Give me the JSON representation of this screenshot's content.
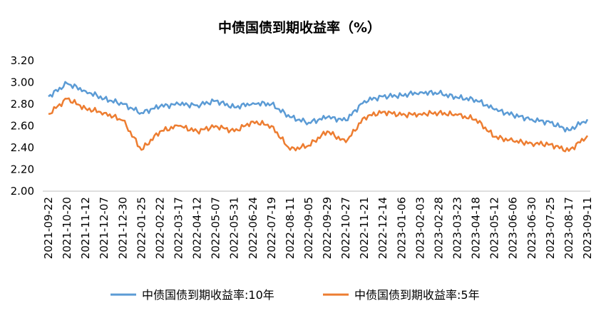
{
  "chart_data": {
    "type": "line",
    "title": "中债国债到期收益率（%）",
    "xlabel": "",
    "ylabel": "",
    "ylim": [
      2.0,
      3.2
    ],
    "yticks": [
      "2.00",
      "2.20",
      "2.40",
      "2.60",
      "2.80",
      "3.00",
      "3.20"
    ],
    "grid": false,
    "legend_position": "bottom",
    "xticks": [
      "2021-09-22",
      "2021-10-20",
      "2021-11-12",
      "2021-12-07",
      "2021-12-30",
      "2022-01-25",
      "2022-02-22",
      "2022-03-17",
      "2022-04-12",
      "2022-05-07",
      "2022-05-31",
      "2022-06-24",
      "2022-07-19",
      "2022-08-11",
      "2022-09-05",
      "2022-09-29",
      "2022-10-27",
      "2022-11-21",
      "2022-12-14",
      "2023-01-06",
      "2023-02-03",
      "2023-02-28",
      "2023-03-23",
      "2023-04-18",
      "2023-05-12",
      "2023-06-06",
      "2023-06-30",
      "2023-07-25",
      "2023-08-17",
      "2023-09-11"
    ],
    "x": [
      "2021-09-22",
      "2021-10-20",
      "2021-11-12",
      "2021-12-07",
      "2021-12-30",
      "2022-01-25",
      "2022-02-22",
      "2022-03-17",
      "2022-04-12",
      "2022-05-07",
      "2022-05-31",
      "2022-06-24",
      "2022-07-19",
      "2022-08-11",
      "2022-09-05",
      "2022-09-29",
      "2022-10-27",
      "2022-11-21",
      "2022-12-14",
      "2023-01-06",
      "2023-02-03",
      "2023-02-28",
      "2023-03-23",
      "2023-04-18",
      "2023-05-12",
      "2023-06-06",
      "2023-06-30",
      "2023-07-25",
      "2023-08-17",
      "2023-09-11"
    ],
    "series": [
      {
        "name": "中债国债到期收益率:10年",
        "color": "#5B9BD5",
        "values": [
          2.87,
          2.99,
          2.92,
          2.85,
          2.8,
          2.72,
          2.78,
          2.8,
          2.79,
          2.83,
          2.77,
          2.81,
          2.8,
          2.68,
          2.63,
          2.68,
          2.65,
          2.83,
          2.87,
          2.88,
          2.91,
          2.9,
          2.86,
          2.84,
          2.75,
          2.7,
          2.66,
          2.63,
          2.56,
          2.66
        ]
      },
      {
        "name": "中债国债到期收益率:5年",
        "color": "#ED7D31",
        "values": [
          2.71,
          2.85,
          2.76,
          2.72,
          2.65,
          2.38,
          2.55,
          2.6,
          2.55,
          2.6,
          2.55,
          2.64,
          2.6,
          2.38,
          2.42,
          2.55,
          2.45,
          2.68,
          2.73,
          2.7,
          2.71,
          2.72,
          2.7,
          2.66,
          2.5,
          2.46,
          2.44,
          2.43,
          2.37,
          2.51
        ]
      }
    ]
  }
}
